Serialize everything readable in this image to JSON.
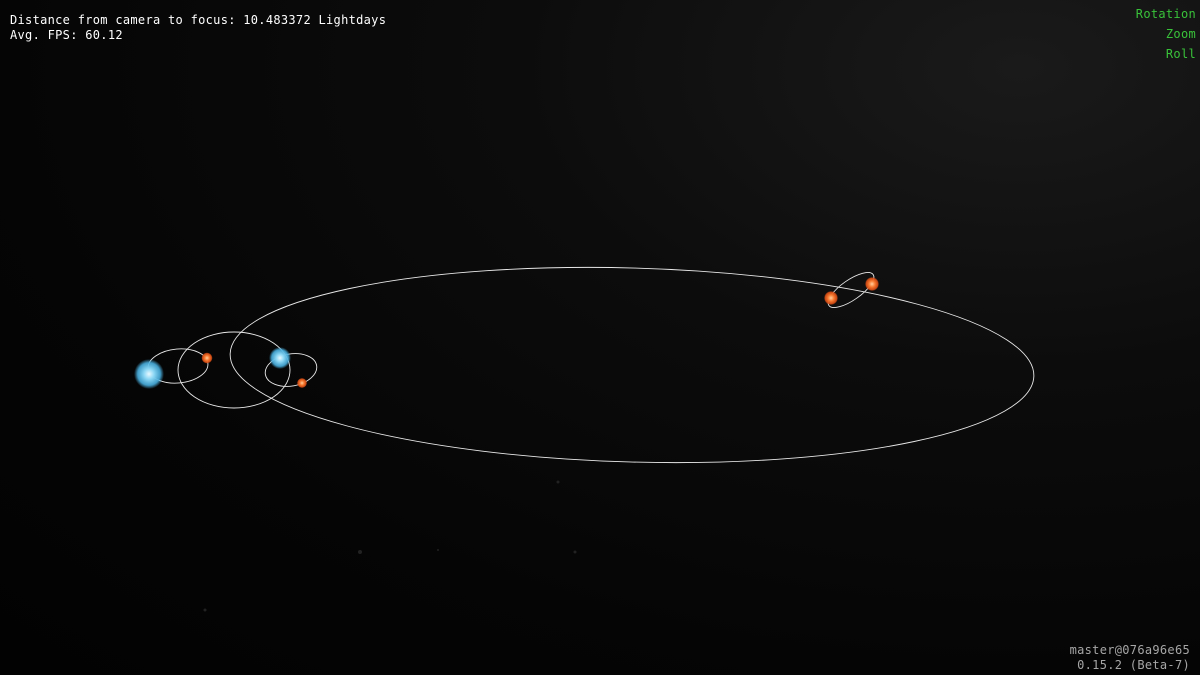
{
  "hud": {
    "distance_text": "Distance from camera to focus: 10.483372 Lightdays",
    "fps_text": "Avg. FPS: 60.12"
  },
  "camera_controls": {
    "rotation": "Rotation",
    "zoom": "Zoom",
    "roll": "Roll"
  },
  "version_info": {
    "branch": "master@076a96e65",
    "release": "0.15.2 (Beta-7)"
  },
  "colors": {
    "background": "#050505",
    "orbit_line": "#e8e8e8",
    "blue_star": "#7fd0f0",
    "orange_star": "#f26a2a",
    "control_text": "#39c23a"
  }
}
